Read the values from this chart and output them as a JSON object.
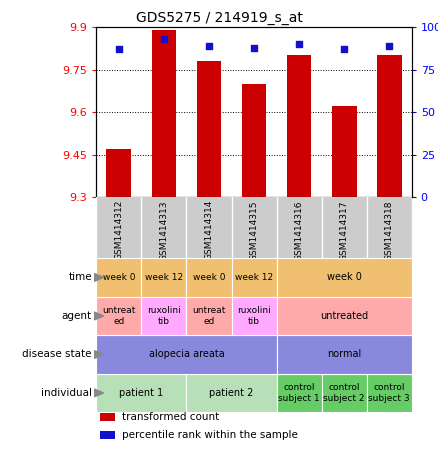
{
  "title": "GDS5275 / 214919_s_at",
  "samples": [
    "GSM1414312",
    "GSM1414313",
    "GSM1414314",
    "GSM1414315",
    "GSM1414316",
    "GSM1414317",
    "GSM1414318"
  ],
  "transformed_count": [
    9.47,
    9.89,
    9.78,
    9.7,
    9.8,
    9.62,
    9.8
  ],
  "percentile_rank": [
    87,
    93,
    89,
    88,
    90,
    87,
    89
  ],
  "ylim_left": [
    9.3,
    9.9
  ],
  "yticks_left": [
    9.3,
    9.45,
    9.6,
    9.75,
    9.9
  ],
  "ylim_right": [
    0,
    100
  ],
  "yticks_right": [
    0,
    25,
    50,
    75,
    100
  ],
  "ytick_right_labels": [
    "0",
    "25",
    "50",
    "75",
    "100%"
  ],
  "bar_color": "#cc0000",
  "dot_color": "#1111cc",
  "annotation_rows": [
    {
      "key": "individual",
      "label": "individual",
      "groups": [
        {
          "text": "patient 1",
          "span": 2,
          "color": "#b8e0b8"
        },
        {
          "text": "patient 2",
          "span": 2,
          "color": "#b8e0b8"
        },
        {
          "text": "control\nsubject 1",
          "span": 1,
          "color": "#66cc66"
        },
        {
          "text": "control\nsubject 2",
          "span": 1,
          "color": "#66cc66"
        },
        {
          "text": "control\nsubject 3",
          "span": 1,
          "color": "#66cc66"
        }
      ]
    },
    {
      "key": "disease_state",
      "label": "disease state",
      "groups": [
        {
          "text": "alopecia areata",
          "span": 4,
          "color": "#8888dd"
        },
        {
          "text": "normal",
          "span": 3,
          "color": "#8888dd"
        }
      ]
    },
    {
      "key": "agent",
      "label": "agent",
      "groups": [
        {
          "text": "untreat\ned",
          "span": 1,
          "color": "#ffaaaa"
        },
        {
          "text": "ruxolini\ntib",
          "span": 1,
          "color": "#ffaaff"
        },
        {
          "text": "untreat\ned",
          "span": 1,
          "color": "#ffaaaa"
        },
        {
          "text": "ruxolini\ntib",
          "span": 1,
          "color": "#ffaaff"
        },
        {
          "text": "untreated",
          "span": 3,
          "color": "#ffaaaa"
        }
      ]
    },
    {
      "key": "time",
      "label": "time",
      "groups": [
        {
          "text": "week 0",
          "span": 1,
          "color": "#f0c070"
        },
        {
          "text": "week 12",
          "span": 1,
          "color": "#f0c070"
        },
        {
          "text": "week 0",
          "span": 1,
          "color": "#f0c070"
        },
        {
          "text": "week 12",
          "span": 1,
          "color": "#f0c070"
        },
        {
          "text": "week 0",
          "span": 3,
          "color": "#f0c070"
        }
      ]
    }
  ],
  "legend": [
    {
      "color": "#cc0000",
      "label": "transformed count"
    },
    {
      "color": "#1111cc",
      "label": "percentile rank within the sample"
    }
  ],
  "sample_bg": "#cccccc"
}
